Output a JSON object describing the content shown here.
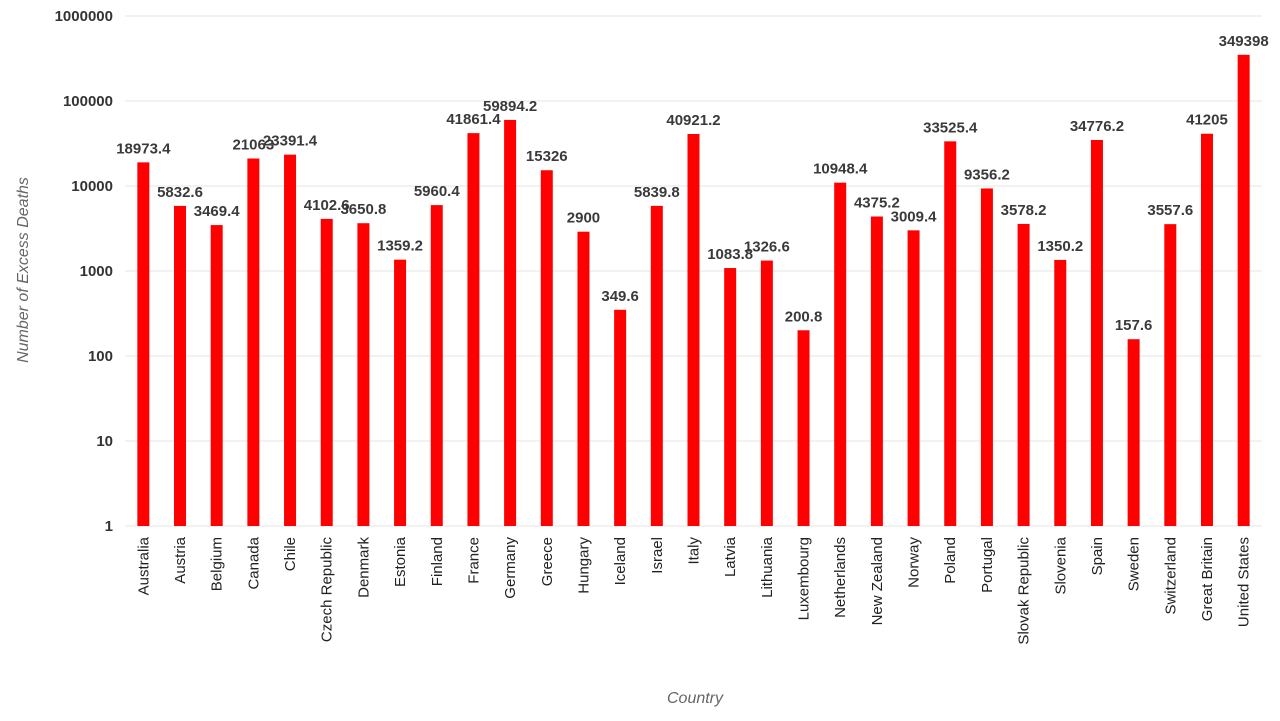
{
  "chart_data": {
    "type": "bar",
    "title": "",
    "xlabel": "Country",
    "ylabel": "Number of Excess Deaths",
    "y_scale": "log",
    "ylim": [
      1,
      1000000
    ],
    "y_ticks": [
      1,
      10,
      100,
      1000,
      10000,
      100000,
      1000000
    ],
    "y_tick_labels": [
      "1",
      "10",
      "100",
      "1000",
      "10000",
      "100000",
      "1000000"
    ],
    "grid": true,
    "legend": "none",
    "bar_color": "#ff0000",
    "categories": [
      "Australia",
      "Austria",
      "Belgium",
      "Canada",
      "Chile",
      "Czech Republic",
      "Denmark",
      "Estonia",
      "Finland",
      "France",
      "Germany",
      "Greece",
      "Hungary",
      "Iceland",
      "Israel",
      "Italy",
      "Latvia",
      "Lithuania",
      "Luxembourg",
      "Netherlands",
      "New Zealand",
      "Norway",
      "Poland",
      "Portugal",
      "Slovak Republic",
      "Slovenia",
      "Spain",
      "Sweden",
      "Switzerland",
      "Great Britain",
      "United States"
    ],
    "values": [
      18973.4,
      5832.6,
      3469.4,
      21063,
      23391.4,
      4102.6,
      3650.8,
      1359.2,
      5960.4,
      41861.4,
      59894.2,
      15326,
      2900,
      349.6,
      5839.8,
      40921.2,
      1083.8,
      1326.6,
      200.8,
      10948.4,
      4375.2,
      3009.4,
      33525.4,
      9356.2,
      3578.2,
      1350.2,
      34776.2,
      157.6,
      3557.6,
      41205,
      349398
    ],
    "data_labels": [
      "18973.4",
      "5832.6",
      "3469.4",
      "21063",
      "23391.4",
      "4102.6",
      "3650.8",
      "1359.2",
      "5960.4",
      "41861.4",
      "59894.2",
      "15326",
      "2900",
      "349.6",
      "5839.8",
      "40921.2",
      "1083.8",
      "1326.6",
      "200.8",
      "10948.4",
      "4375.2",
      "3009.4",
      "33525.4",
      "9356.2",
      "3578.2",
      "1350.2",
      "34776.2",
      "157.6",
      "3557.6",
      "41205",
      "349398"
    ]
  }
}
